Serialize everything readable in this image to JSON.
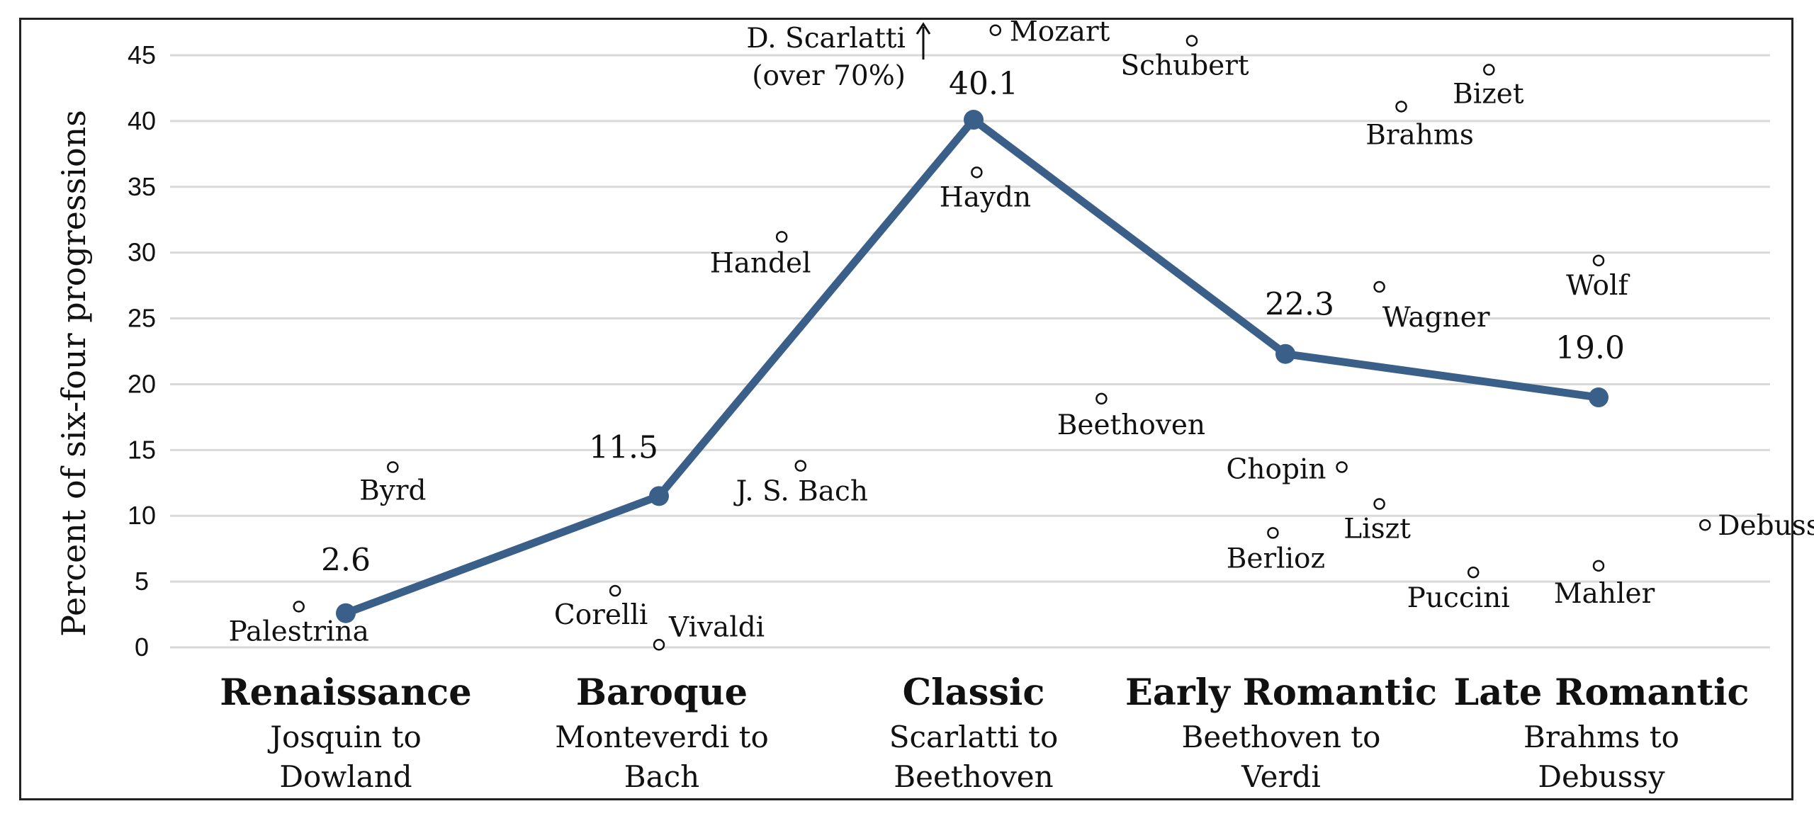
{
  "chart_data": {
    "type": "line",
    "ylabel": "Percent of six-four progressions",
    "ylim": [
      0,
      45
    ],
    "yticks": [
      "0",
      "5",
      "10",
      "15",
      "20",
      "25",
      "30",
      "35",
      "40",
      "45"
    ],
    "grid": true,
    "series_color": "#3a5f89",
    "categories": [
      {
        "name": "Renaissance",
        "sub1": "Josquin to",
        "sub2": "Dowland"
      },
      {
        "name": "Baroque",
        "sub1": "Monteverdi to",
        "sub2": "Bach"
      },
      {
        "name": "Classic",
        "sub1": "Scarlatti to",
        "sub2": "Beethoven"
      },
      {
        "name": "Early Romantic",
        "sub1": "Beethoven to",
        "sub2": "Verdi"
      },
      {
        "name": "Late Romantic",
        "sub1": "Brahms to",
        "sub2": "Debussy"
      }
    ],
    "series": [
      {
        "values": [
          2.6,
          11.5,
          40.1,
          22.3,
          19.0
        ],
        "labels": [
          "2.6",
          "11.5",
          "40.1",
          "22.3",
          "19.0"
        ]
      }
    ],
    "composers": [
      {
        "name": "Palestrina",
        "x": 0.85,
        "y": 3.1
      },
      {
        "name": "Byrd",
        "x": 1.15,
        "y": 13.7
      },
      {
        "name": "Corelli",
        "x": 1.86,
        "y": 4.3
      },
      {
        "name": "Vivaldi",
        "x": 2.0,
        "y": 0.2
      },
      {
        "name": "Handel",
        "x": 2.39,
        "y": 31.2
      },
      {
        "name": "J. S. Bach",
        "x": 2.45,
        "y": 13.8
      },
      {
        "name": "Haydn",
        "x": 3.01,
        "y": 36.1
      },
      {
        "name": "Mozart",
        "x": 3.07,
        "y": 46.9
      },
      {
        "name": "Beethoven",
        "x": 3.41,
        "y": 18.9
      },
      {
        "name": "Schubert",
        "x": 3.7,
        "y": 46.1
      },
      {
        "name": "Chopin",
        "x": 4.18,
        "y": 13.7
      },
      {
        "name": "Berlioz",
        "x": 3.96,
        "y": 8.7
      },
      {
        "name": "Liszt",
        "x": 4.3,
        "y": 10.9
      },
      {
        "name": "Wagner",
        "x": 4.3,
        "y": 27.4
      },
      {
        "name": "Brahms",
        "x": 4.37,
        "y": 41.1
      },
      {
        "name": "Bizet",
        "x": 4.65,
        "y": 43.9
      },
      {
        "name": "Puccini",
        "x": 4.6,
        "y": 5.7
      },
      {
        "name": "Wolf",
        "x": 5.0,
        "y": 29.4
      },
      {
        "name": "Mahler",
        "x": 5.0,
        "y": 6.2
      },
      {
        "name": "Debussy",
        "x": 5.34,
        "y": 9.3
      }
    ],
    "annotation": {
      "line1": "D. Scarlatti",
      "line2": "(over 70%)"
    }
  }
}
